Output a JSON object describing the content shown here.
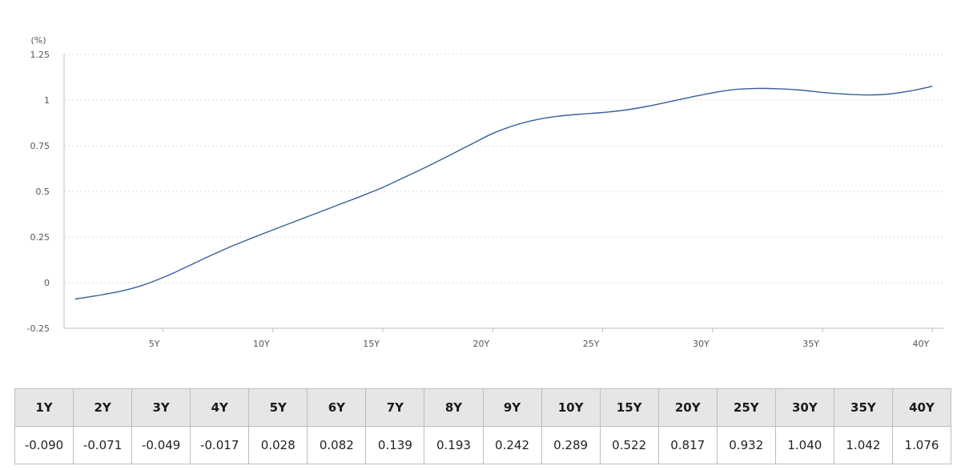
{
  "chart_data": {
    "type": "line",
    "ylabel": "(%)",
    "ylim": [
      -0.25,
      1.25
    ],
    "yticks": [
      "1.25",
      "1",
      "0.75",
      "0.5",
      "0.25",
      "0",
      "-0.25"
    ],
    "ytick_values": [
      1.25,
      1,
      0.75,
      0.5,
      0.25,
      0,
      -0.25
    ],
    "xlim": [
      0.5,
      40.5
    ],
    "xticks": [
      "5Y",
      "10Y",
      "15Y",
      "20Y",
      "25Y",
      "30Y",
      "35Y",
      "40Y"
    ],
    "xtick_values": [
      5,
      10,
      15,
      20,
      25,
      30,
      35,
      40
    ],
    "grid": true,
    "line_color": "#3a5f9a",
    "series": [
      {
        "x": [
          1,
          2,
          3,
          4,
          5,
          6,
          7,
          8,
          9,
          10,
          11,
          12,
          13,
          14,
          15,
          16,
          17,
          18,
          19,
          20,
          21,
          22,
          23,
          24,
          25,
          26,
          27,
          28,
          29,
          30,
          31,
          32,
          33,
          34,
          35,
          36,
          37,
          38,
          39,
          40
        ],
        "values": [
          -0.09,
          -0.071,
          -0.049,
          -0.017,
          0.028,
          0.082,
          0.139,
          0.193,
          0.242,
          0.289,
          0.335,
          0.381,
          0.427,
          0.473,
          0.522,
          0.578,
          0.635,
          0.695,
          0.757,
          0.817,
          0.862,
          0.893,
          0.912,
          0.923,
          0.932,
          0.945,
          0.965,
          0.99,
          1.016,
          1.04,
          1.058,
          1.064,
          1.062,
          1.055,
          1.042,
          1.033,
          1.028,
          1.033,
          1.05,
          1.076
        ]
      }
    ]
  },
  "table": {
    "headers": [
      "1Y",
      "2Y",
      "3Y",
      "4Y",
      "5Y",
      "6Y",
      "7Y",
      "8Y",
      "9Y",
      "10Y",
      "15Y",
      "20Y",
      "25Y",
      "30Y",
      "35Y",
      "40Y"
    ],
    "values": [
      "-0.090",
      "-0.071",
      "-0.049",
      "-0.017",
      "0.028",
      "0.082",
      "0.139",
      "0.193",
      "0.242",
      "0.289",
      "0.522",
      "0.817",
      "0.932",
      "1.040",
      "1.042",
      "1.076"
    ]
  }
}
